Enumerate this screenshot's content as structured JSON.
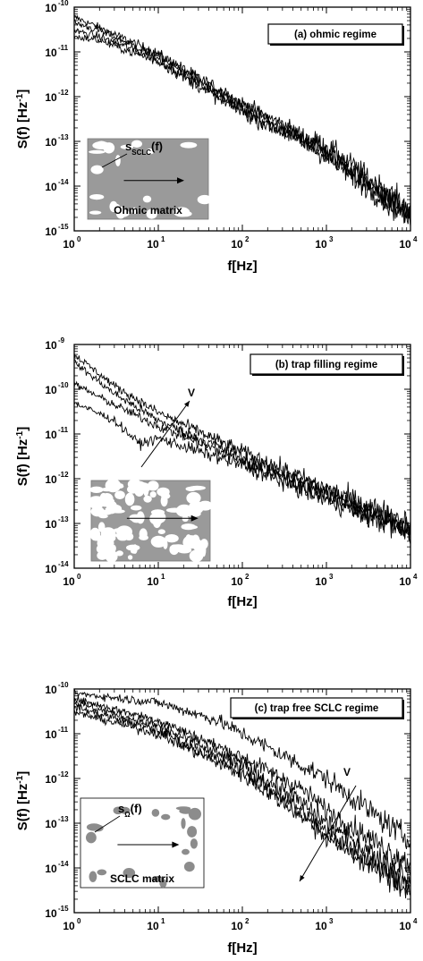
{
  "chart_data": [
    {
      "type": "line",
      "legend": "(a) ohmic regime",
      "xlabel": "f[Hz]",
      "ylabel_main": "S(f) [Hz",
      "ylabel_sup": "-1",
      "ylabel_end": "]",
      "x_scale": "log",
      "y_scale": "log",
      "xlim": [
        1,
        10000
      ],
      "ylim_exp": [
        -15,
        -10
      ],
      "x_ticks": [
        {
          "m": "10",
          "e": "0"
        },
        {
          "m": "10",
          "e": "1"
        },
        {
          "m": "10",
          "e": "2"
        },
        {
          "m": "10",
          "e": "3"
        },
        {
          "m": "10",
          "e": "4"
        }
      ],
      "y_ticks": [
        {
          "m": "10",
          "e": "-15"
        },
        {
          "m": "10",
          "e": "-14"
        },
        {
          "m": "10",
          "e": "-13"
        },
        {
          "m": "10",
          "e": "-12"
        },
        {
          "m": "10",
          "e": "-11"
        },
        {
          "m": "10",
          "e": "-10"
        }
      ],
      "inset": {
        "label": "Ohmic matrix",
        "annotation_main": "s",
        "annotation_sub": "SCLC",
        "annotation_end": "(f)",
        "style": "white-on-gray"
      },
      "series": [
        {
          "points": [
            [
              1,
              6e-11
            ],
            [
              2,
              3.5e-11
            ],
            [
              10,
              9e-12
            ],
            [
              100,
              7e-13
            ],
            [
              500,
              1.4e-13
            ],
            [
              1000,
              8e-14
            ],
            [
              10000,
              3e-15
            ]
          ]
        },
        {
          "points": [
            [
              1,
              4.5e-11
            ],
            [
              2,
              3e-11
            ],
            [
              10,
              8e-12
            ],
            [
              100,
              6e-13
            ],
            [
              500,
              1.2e-13
            ],
            [
              1000,
              6e-14
            ],
            [
              10000,
              2.5e-15
            ]
          ]
        },
        {
          "points": [
            [
              1,
              3e-11
            ],
            [
              2,
              2.2e-11
            ],
            [
              10,
              7e-12
            ],
            [
              100,
              5e-13
            ],
            [
              500,
              1.1e-13
            ],
            [
              1000,
              5e-14
            ],
            [
              10000,
              2e-15
            ]
          ]
        },
        {
          "points": [
            [
              1,
              2.2e-11
            ],
            [
              2,
              1.8e-11
            ],
            [
              10,
              6e-12
            ],
            [
              100,
              4.5e-13
            ],
            [
              500,
              1e-13
            ],
            [
              1000,
              4.5e-14
            ],
            [
              10000,
              1.8e-15
            ]
          ]
        }
      ]
    },
    {
      "type": "line",
      "legend": "(b) trap filling regime",
      "xlabel": "f[Hz]",
      "ylabel_main": "S(f) [Hz",
      "ylabel_sup": "-1",
      "ylabel_end": "]",
      "x_scale": "log",
      "y_scale": "log",
      "xlim": [
        1,
        10000
      ],
      "ylim_exp": [
        -14,
        -9
      ],
      "x_ticks": [
        {
          "m": "10",
          "e": "0"
        },
        {
          "m": "10",
          "e": "1"
        },
        {
          "m": "10",
          "e": "2"
        },
        {
          "m": "10",
          "e": "3"
        },
        {
          "m": "10",
          "e": "4"
        }
      ],
      "y_ticks": [
        {
          "m": "10",
          "e": "-14"
        },
        {
          "m": "10",
          "e": "-13"
        },
        {
          "m": "10",
          "e": "-12"
        },
        {
          "m": "10",
          "e": "-11"
        },
        {
          "m": "10",
          "e": "-10"
        },
        {
          "m": "10",
          "e": "-9"
        }
      ],
      "arrow_label": "V",
      "inset": {
        "style": "white-on-gray-dense"
      },
      "series": [
        {
          "points": [
            [
              1,
              6e-10
            ],
            [
              3,
              1.2e-10
            ],
            [
              10,
              3e-11
            ],
            [
              100,
              4e-12
            ],
            [
              1000,
              6e-13
            ],
            [
              10000,
              1e-13
            ]
          ]
        },
        {
          "points": [
            [
              1,
              4e-10
            ],
            [
              3,
              8e-11
            ],
            [
              10,
              2e-11
            ],
            [
              100,
              3e-12
            ],
            [
              1000,
              5e-13
            ],
            [
              10000,
              8e-14
            ]
          ]
        },
        {
          "points": [
            [
              1,
              1.3e-10
            ],
            [
              3,
              4.5e-11
            ],
            [
              10,
              1.5e-11
            ],
            [
              100,
              2.5e-12
            ],
            [
              1000,
              4e-13
            ],
            [
              10000,
              7e-14
            ]
          ]
        },
        {
          "points": [
            [
              1,
              5e-11
            ],
            [
              3,
              2e-11
            ],
            [
              6,
              6e-12
            ],
            [
              10,
              8e-12
            ],
            [
              100,
              2e-12
            ],
            [
              1000,
              3.5e-13
            ],
            [
              10000,
              6e-14
            ]
          ]
        }
      ]
    },
    {
      "type": "line",
      "legend": "(c) trap free SCLC regime",
      "xlabel": "f[Hz]",
      "ylabel_main": "S(f) [Hz",
      "ylabel_sup": "-1",
      "ylabel_end": "]",
      "x_scale": "log",
      "y_scale": "log",
      "xlim": [
        1,
        10000
      ],
      "ylim_exp": [
        -15,
        -10
      ],
      "x_ticks": [
        {
          "m": "10",
          "e": "0"
        },
        {
          "m": "10",
          "e": "1"
        },
        {
          "m": "10",
          "e": "2"
        },
        {
          "m": "10",
          "e": "3"
        },
        {
          "m": "10",
          "e": "4"
        }
      ],
      "y_ticks": [
        {
          "m": "10",
          "e": "-15"
        },
        {
          "m": "10",
          "e": "-14"
        },
        {
          "m": "10",
          "e": "-13"
        },
        {
          "m": "10",
          "e": "-12"
        },
        {
          "m": "10",
          "e": "-11"
        },
        {
          "m": "10",
          "e": "-10"
        }
      ],
      "arrow_label": "V",
      "inset": {
        "label": "SCLC matrix",
        "annotation_main": "s",
        "annotation_sub": "Ω",
        "annotation_end": "(f)",
        "style": "gray-on-white"
      },
      "series": [
        {
          "points": [
            [
              1,
              8e-11
            ],
            [
              10,
              5e-11
            ],
            [
              50,
              2e-11
            ],
            [
              100,
              1e-11
            ],
            [
              1000,
              1e-12
            ],
            [
              10000,
              4e-14
            ]
          ]
        },
        {
          "points": [
            [
              1,
              6e-11
            ],
            [
              10,
              2e-11
            ],
            [
              100,
              3e-12
            ],
            [
              500,
              6e-13
            ],
            [
              1000,
              2e-13
            ],
            [
              10000,
              1.2e-14
            ]
          ]
        },
        {
          "points": [
            [
              1,
              5e-11
            ],
            [
              10,
              1.5e-11
            ],
            [
              100,
              2e-12
            ],
            [
              500,
              3e-13
            ],
            [
              1000,
              1e-13
            ],
            [
              10000,
              6e-15
            ]
          ]
        },
        {
          "points": [
            [
              1,
              4e-11
            ],
            [
              10,
              1.2e-11
            ],
            [
              100,
              1.5e-12
            ],
            [
              500,
              2e-13
            ],
            [
              1000,
              6e-14
            ],
            [
              10000,
              4e-15
            ]
          ]
        },
        {
          "points": [
            [
              1,
              3e-11
            ],
            [
              10,
              1e-11
            ],
            [
              100,
              1.2e-12
            ],
            [
              500,
              1.5e-13
            ],
            [
              1000,
              5e-14
            ],
            [
              10000,
              3e-15
            ]
          ]
        }
      ]
    }
  ]
}
